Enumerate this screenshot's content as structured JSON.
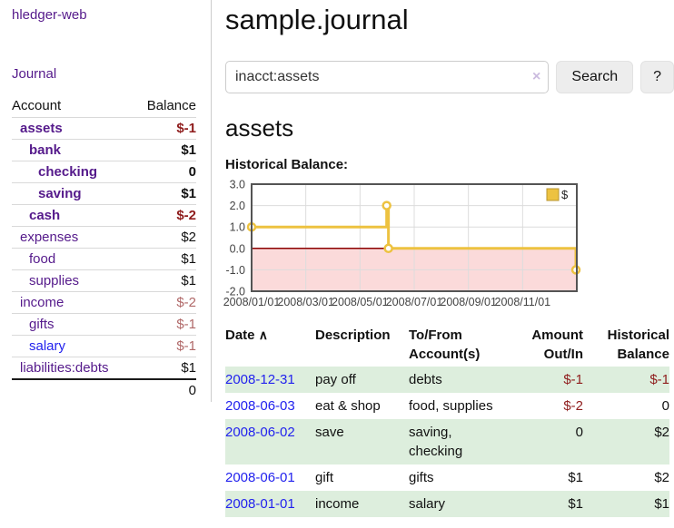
{
  "sidebar": {
    "app_title": "hledger-web",
    "journal_link": "Journal",
    "accounts": {
      "headers": {
        "account": "Account",
        "balance": "Balance"
      },
      "rows": [
        {
          "name": "assets",
          "balance": "$-1"
        },
        {
          "name": "bank",
          "balance": "$1"
        },
        {
          "name": "checking",
          "balance": "0"
        },
        {
          "name": "saving",
          "balance": "$1"
        },
        {
          "name": "cash",
          "balance": "$-2"
        },
        {
          "name": "expenses",
          "balance": "$2"
        },
        {
          "name": "food",
          "balance": "$1"
        },
        {
          "name": "supplies",
          "balance": "$1"
        },
        {
          "name": "income",
          "balance": "$-2"
        },
        {
          "name": "gifts",
          "balance": "$-1"
        },
        {
          "name": "salary",
          "balance": "$-1"
        },
        {
          "name": "liabilities:debts",
          "balance": "$1"
        }
      ],
      "total": "0"
    }
  },
  "main": {
    "title": "sample.journal",
    "search": {
      "query": "inacct:assets",
      "clear_icon": "×",
      "search_button": "Search",
      "help_button": "?"
    },
    "account_heading": "assets",
    "chart_label": "Historical Balance:",
    "register": {
      "headers": {
        "date": "Date",
        "sort_icon": "∧",
        "description": "Description",
        "accounts": "To/From Account(s)",
        "amount": "Amount Out/In",
        "balance": "Historical Balance"
      },
      "rows": [
        {
          "date": "2008-12-31",
          "description": "pay off",
          "accounts": "debts",
          "amount": "$-1",
          "balance": "$-1"
        },
        {
          "date": "2008-06-03",
          "description": "eat & shop",
          "accounts": "food, supplies",
          "amount": "$-2",
          "balance": "0"
        },
        {
          "date": "2008-06-02",
          "description": "save",
          "accounts": "saving, checking",
          "amount": "0",
          "balance": "$2"
        },
        {
          "date": "2008-06-01",
          "description": "gift",
          "accounts": "gifts",
          "amount": "$1",
          "balance": "$2"
        },
        {
          "date": "2008-01-01",
          "description": "income",
          "accounts": "salary",
          "amount": "$1",
          "balance": "$1"
        }
      ]
    }
  },
  "chart_data": {
    "type": "line",
    "title": "Historical Balance",
    "step": true,
    "ylim": [
      -2,
      3
    ],
    "y_ticks": [
      3,
      2,
      1,
      0,
      -1,
      -2
    ],
    "xlim_days": [
      0,
      366
    ],
    "x_ticks": [
      {
        "label": "2008/01/01",
        "month": 0
      },
      {
        "label": "2008/03/01",
        "month": 2
      },
      {
        "label": "2008/05/01",
        "month": 4
      },
      {
        "label": "2008/07/01",
        "month": 6
      },
      {
        "label": "2008/09/01",
        "month": 8
      },
      {
        "label": "2008/11/01",
        "month": 10
      }
    ],
    "series": [
      {
        "name": "$",
        "color": "#edc240",
        "points": [
          {
            "date": "2008-01-01",
            "day_of_year": 0,
            "value": 1
          },
          {
            "date": "2008-06-01",
            "day_of_year": 152,
            "value": 2
          },
          {
            "date": "2008-06-03",
            "day_of_year": 154,
            "value": 0
          },
          {
            "date": "2008-12-31",
            "day_of_year": 365,
            "value": -1
          }
        ]
      }
    ],
    "legend": {
      "label": "$",
      "swatch_color": "#edc240",
      "swatch_border": "#b89530",
      "position": "top-right"
    },
    "negative_region_fill": "#fbdada",
    "zero_line_color": "#8b0000",
    "grid_color": "#dcdcdc",
    "border_color": "#545454",
    "grid": true
  }
}
